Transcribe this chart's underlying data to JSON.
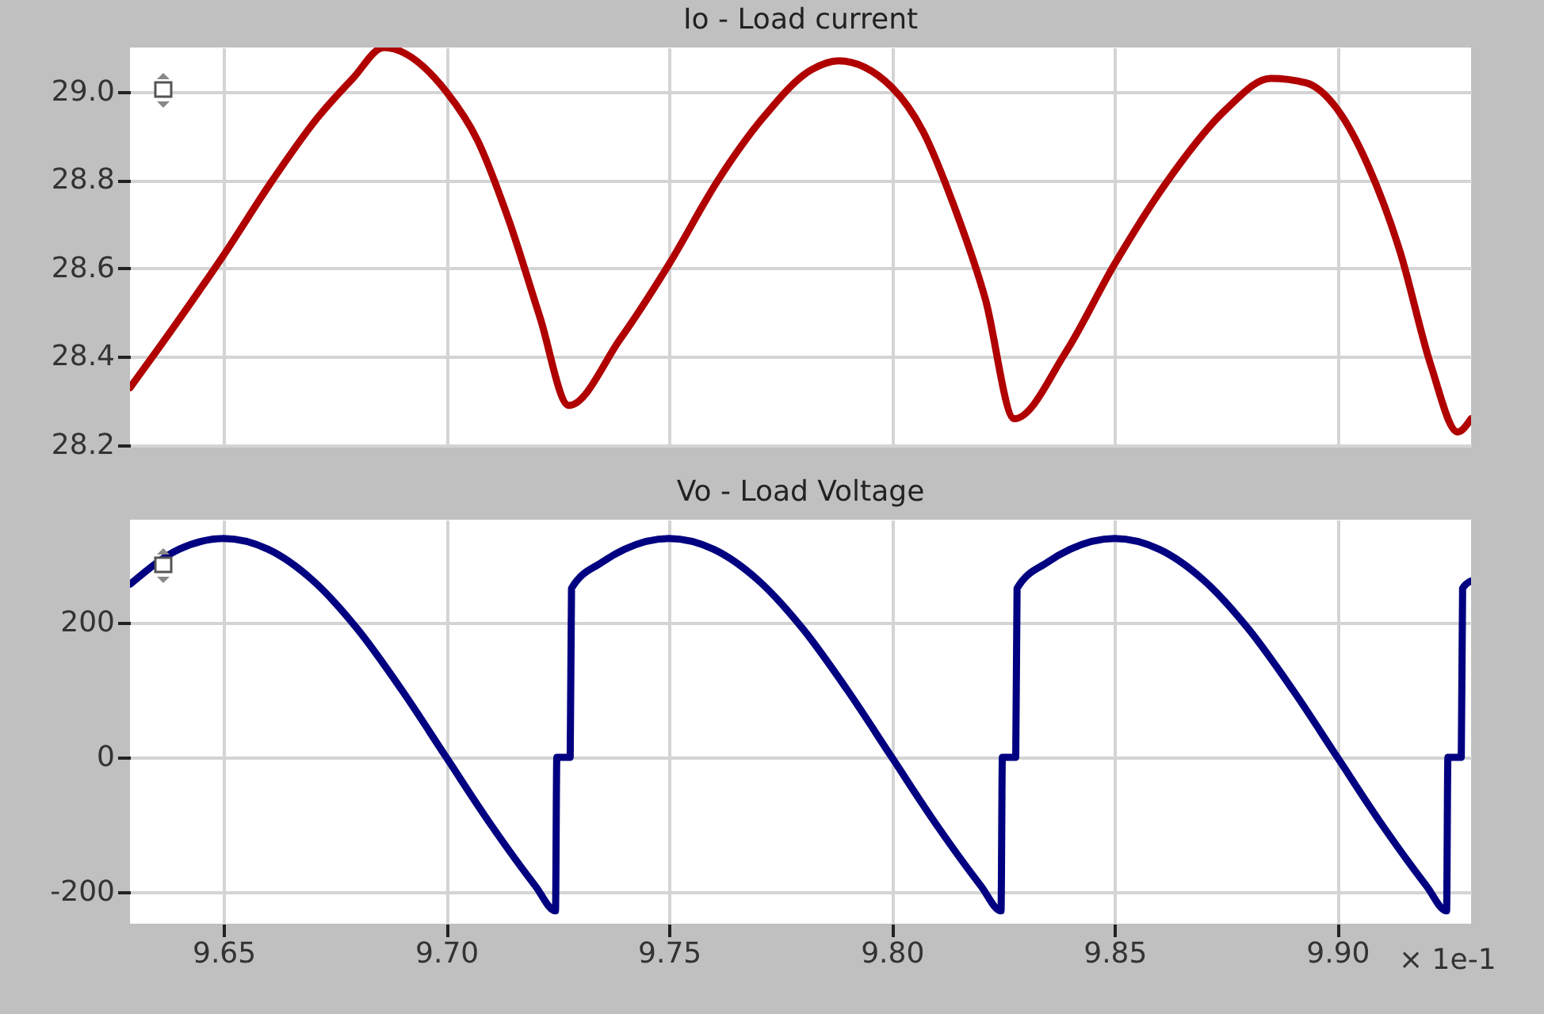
{
  "chart_data": [
    {
      "type": "line",
      "title": "Io - Load current",
      "xlim": [
        9.629,
        9.93
      ],
      "xticks": [
        9.65,
        9.7,
        9.75,
        9.8,
        9.85,
        9.9
      ],
      "ylim": [
        28.2,
        29.1
      ],
      "yticks": [
        28.2,
        28.4,
        28.6,
        28.8,
        {
          "value": 29.0,
          "label": "29.0"
        }
      ],
      "grid": true,
      "tick_labels": "y",
      "series": [
        {
          "color": "#b00000",
          "x": [
            9.629,
            9.639,
            9.65,
            9.661,
            9.671,
            9.679,
            9.686,
            9.7,
            9.707,
            9.714,
            9.721,
            9.7275,
            9.739,
            9.75,
            9.761,
            9.771,
            9.782,
            9.788,
            9.8,
            9.807,
            9.814,
            9.821,
            9.8275,
            9.839,
            9.85,
            9.862,
            9.875,
            9.885,
            9.893,
            9.9,
            9.907,
            9.914,
            9.921,
            9.927,
            9.93
          ],
          "values": [
            28.33,
            28.47,
            28.63,
            28.8,
            28.94,
            29.03,
            29.1,
            29.0,
            28.89,
            28.71,
            28.49,
            28.29,
            28.44,
            28.61,
            28.8,
            28.94,
            29.05,
            29.07,
            29.01,
            28.91,
            28.74,
            28.53,
            28.26,
            28.41,
            28.61,
            28.8,
            28.96,
            29.03,
            29.02,
            28.96,
            28.83,
            28.64,
            28.38,
            28.23,
            28.26
          ]
        }
      ]
    },
    {
      "type": "line",
      "title": "Vo - Load Voltage",
      "xlabel": "× 1e-1",
      "xlim": [
        9.629,
        9.93
      ],
      "xticks": [
        9.65,
        {
          "value": 9.7,
          "label": "9.70"
        },
        9.75,
        {
          "value": 9.8,
          "label": "9.80"
        },
        9.85,
        {
          "value": 9.9,
          "label": "9.90"
        }
      ],
      "ylim": [
        -247,
        353
      ],
      "yticks": [
        -200,
        0,
        200
      ],
      "grid": true,
      "series": [
        {
          "color": "#000080",
          "x": [
            9.629,
            9.64,
            9.65,
            9.66,
            9.67,
            9.68,
            9.69,
            9.7,
            9.71,
            9.72,
            9.7245,
            9.7248,
            9.7278,
            9.7281,
            9.735,
            9.74,
            9.75,
            9.76,
            9.77,
            9.78,
            9.79,
            9.8,
            9.81,
            9.82,
            9.8245,
            9.8248,
            9.8278,
            9.8281,
            9.835,
            9.84,
            9.85,
            9.86,
            9.87,
            9.88,
            9.89,
            9.9,
            9.91,
            9.92,
            9.9245,
            9.9248,
            9.9278,
            9.9281,
            9.93
          ],
          "values": [
            257,
            309,
            325,
            309,
            263,
            191,
            100,
            0,
            -100,
            -191,
            -228,
            0,
            0,
            251,
            290,
            309,
            325,
            309,
            263,
            191,
            100,
            0,
            -100,
            -191,
            -228,
            0,
            0,
            251,
            290,
            309,
            325,
            309,
            263,
            191,
            100,
            0,
            -100,
            -191,
            -228,
            0,
            0,
            251,
            262
          ]
        }
      ]
    }
  ]
}
